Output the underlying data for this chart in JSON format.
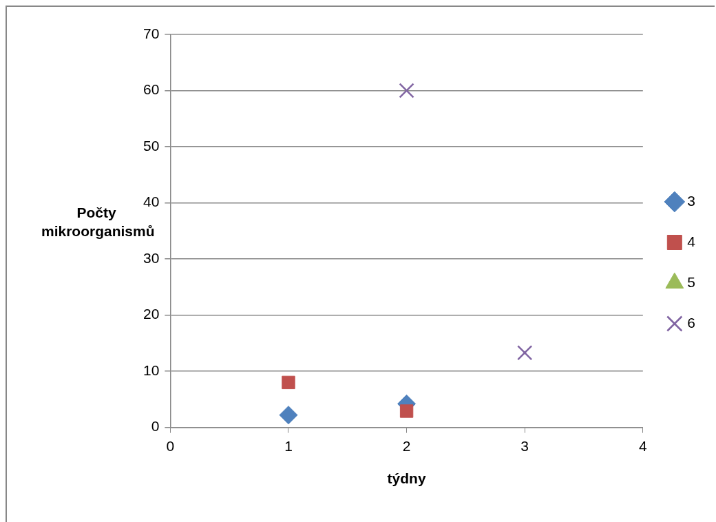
{
  "chart_data": {
    "type": "scatter",
    "xlabel": "týdny",
    "ylabel": "Počty mikroorganismů",
    "xlim": [
      0,
      4
    ],
    "xticks": [
      0,
      1,
      2,
      3,
      4
    ],
    "ylim": [
      0,
      70
    ],
    "yticks": [
      0,
      10,
      20,
      30,
      40,
      50,
      60,
      70
    ],
    "grid": "y",
    "legend": "right",
    "series": [
      {
        "name": "3",
        "color": "#4f81bd",
        "marker": "diamond",
        "x": [
          1,
          2
        ],
        "values": [
          2.2,
          4.2
        ]
      },
      {
        "name": "4",
        "color": "#c0504d",
        "marker": "square",
        "x": [
          1,
          2
        ],
        "values": [
          8,
          2.9
        ]
      },
      {
        "name": "5",
        "color": "#9bbb59",
        "marker": "triangle"
      },
      {
        "name": "6",
        "color": "#8064a2",
        "marker": "cross",
        "x": [
          2,
          3
        ],
        "values": [
          60,
          13.3
        ]
      }
    ]
  }
}
